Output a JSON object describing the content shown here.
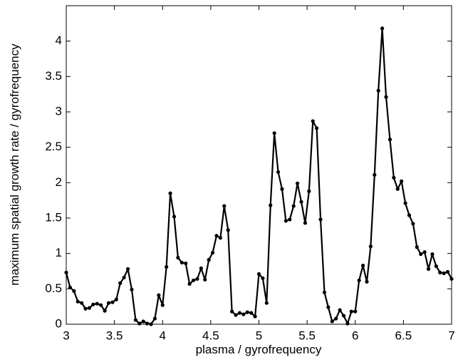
{
  "chart_data": {
    "type": "line",
    "x_label": "plasma / gyrofrequency",
    "y_label": "maximum spatial growth rate / gyrofrequency",
    "x": [
      3.0,
      3.04,
      3.08,
      3.12,
      3.16,
      3.2,
      3.24,
      3.28,
      3.32,
      3.36,
      3.4,
      3.44,
      3.48,
      3.52,
      3.56,
      3.6,
      3.64,
      3.68,
      3.72,
      3.76,
      3.8,
      3.84,
      3.88,
      3.92,
      3.96,
      4.0,
      4.04,
      4.08,
      4.12,
      4.16,
      4.2,
      4.24,
      4.28,
      4.32,
      4.36,
      4.4,
      4.44,
      4.48,
      4.52,
      4.56,
      4.6,
      4.64,
      4.68,
      4.72,
      4.76,
      4.8,
      4.84,
      4.88,
      4.92,
      4.96,
      5.0,
      5.04,
      5.08,
      5.12,
      5.16,
      5.2,
      5.24,
      5.28,
      5.32,
      5.36,
      5.4,
      5.44,
      5.48,
      5.52,
      5.56,
      5.6,
      5.64,
      5.68,
      5.72,
      5.76,
      5.8,
      5.84,
      5.88,
      5.92,
      5.96,
      6.0,
      6.04,
      6.08,
      6.12,
      6.16,
      6.2,
      6.24,
      6.28,
      6.32,
      6.36,
      6.4,
      6.44,
      6.48,
      6.52,
      6.56,
      6.6,
      6.64,
      6.68,
      6.72,
      6.76,
      6.8,
      6.84,
      6.88,
      6.92,
      6.96,
      7.0
    ],
    "series": [
      {
        "color": "#000000",
        "values": [
          0.73,
          0.52,
          0.47,
          0.32,
          0.3,
          0.22,
          0.23,
          0.28,
          0.29,
          0.27,
          0.19,
          0.3,
          0.31,
          0.35,
          0.58,
          0.66,
          0.78,
          0.49,
          0.06,
          0.01,
          0.04,
          0.01,
          0.0,
          0.08,
          0.41,
          0.27,
          0.81,
          1.85,
          1.52,
          0.94,
          0.87,
          0.86,
          0.57,
          0.62,
          0.64,
          0.79,
          0.63,
          0.91,
          1.01,
          1.25,
          1.22,
          1.67,
          1.33,
          0.18,
          0.13,
          0.16,
          0.14,
          0.17,
          0.16,
          0.11,
          0.71,
          0.65,
          0.3,
          1.68,
          2.7,
          2.15,
          1.91,
          1.46,
          1.48,
          1.67,
          1.99,
          1.73,
          1.43,
          1.88,
          2.87,
          2.77,
          1.48,
          0.45,
          0.24,
          0.04,
          0.08,
          0.2,
          0.12,
          0.01,
          0.18,
          0.18,
          0.62,
          0.83,
          0.6,
          1.1,
          2.11,
          3.3,
          4.18,
          3.21,
          2.61,
          2.07,
          1.91,
          2.02,
          1.71,
          1.54,
          1.42,
          1.09,
          0.99,
          1.02,
          0.78,
          0.99,
          0.82,
          0.73,
          0.72,
          0.74,
          0.64
        ]
      }
    ],
    "xlim": [
      3,
      7
    ],
    "xticks": [
      3,
      3.5,
      4,
      4.5,
      5,
      5.5,
      6,
      6.5,
      7
    ],
    "ylim": [
      0,
      4.5
    ],
    "yticks": [
      0,
      0.5,
      1,
      1.5,
      2,
      2.5,
      3,
      3.5,
      4
    ],
    "grid": false
  }
}
